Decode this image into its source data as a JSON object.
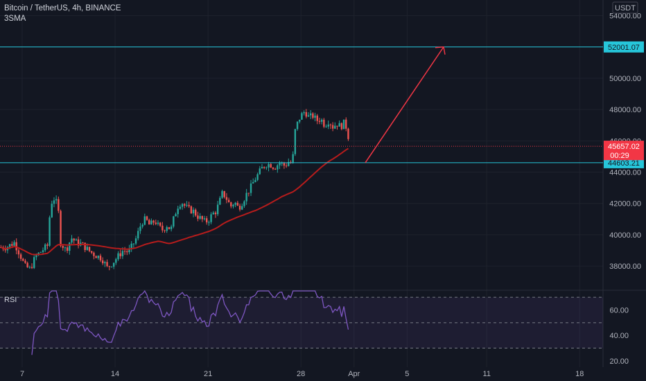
{
  "header": {
    "symbol_line": "Bitcoin / TetherUS, 4h, BINANCE",
    "indicator": "3SMA"
  },
  "currency": "USDT",
  "rsi_label": "RSI",
  "price_tag": {
    "price": "45657.02",
    "countdown": "00:29",
    "color": "#f23645"
  },
  "levels": [
    {
      "value": 52001.07,
      "label": "52001.07",
      "color": "#26c6da"
    },
    {
      "value": 44603.21,
      "label": "44603.21",
      "color": "#26c6da"
    }
  ],
  "colors": {
    "up": "#26a69a",
    "down": "#ef5350",
    "sma": "#b71c1c",
    "rsi": "#7e57c2",
    "arrow": "#f23645"
  },
  "chart_data": {
    "type": "candlestick",
    "title": "Bitcoin / TetherUS, 4h, BINANCE",
    "price_axis": {
      "ylim": [
        36500,
        55000
      ],
      "ticks": [
        38000,
        40000,
        42000,
        44000,
        46000,
        48000,
        50000,
        52000,
        54000
      ],
      "tick_labels": [
        "38000.00",
        "40000.00",
        "42000.00",
        "44000.00",
        "46000.00",
        "48000.00",
        "50000.00",
        "52000.00",
        "54000.00"
      ]
    },
    "x_axis": {
      "tick_labels": [
        "7",
        "14",
        "21",
        "28",
        "Apr",
        "5",
        "11",
        "18"
      ],
      "tick_day_index": [
        0,
        7,
        14,
        21,
        25,
        29,
        35,
        42
      ]
    },
    "price_path": [
      [
        -1.2,
        39200
      ],
      [
        -0.6,
        39500
      ],
      [
        -0.2,
        38800
      ],
      [
        0.2,
        38000
      ],
      [
        0.6,
        37800
      ],
      [
        1.0,
        38600
      ],
      [
        1.5,
        39000
      ],
      [
        1.9,
        39300
      ],
      [
        2.1,
        41500
      ],
      [
        2.3,
        42400
      ],
      [
        2.5,
        42200
      ],
      [
        2.7,
        41800
      ],
      [
        2.9,
        39500
      ],
      [
        3.3,
        39000
      ],
      [
        3.7,
        39800
      ],
      [
        4.1,
        39500
      ],
      [
        4.5,
        39400
      ],
      [
        5.0,
        39000
      ],
      [
        5.5,
        38700
      ],
      [
        6.0,
        38500
      ],
      [
        6.4,
        37900
      ],
      [
        6.8,
        38200
      ],
      [
        7.2,
        38600
      ],
      [
        7.6,
        39000
      ],
      [
        8.0,
        38900
      ],
      [
        8.3,
        39300
      ],
      [
        8.6,
        39800
      ],
      [
        8.8,
        40300
      ],
      [
        9.0,
        40800
      ],
      [
        9.3,
        41000
      ],
      [
        9.6,
        40600
      ],
      [
        10.0,
        40900
      ],
      [
        10.3,
        40500
      ],
      [
        10.6,
        40300
      ],
      [
        10.9,
        40600
      ],
      [
        11.2,
        40300
      ],
      [
        11.4,
        41000
      ],
      [
        11.7,
        41800
      ],
      [
        12.0,
        42100
      ],
      [
        12.3,
        41800
      ],
      [
        12.6,
        41600
      ],
      [
        12.9,
        41500
      ],
      [
        13.2,
        41200
      ],
      [
        13.5,
        41000
      ],
      [
        13.8,
        40800
      ],
      [
        14.1,
        41000
      ],
      [
        14.3,
        41300
      ],
      [
        14.6,
        41500
      ],
      [
        14.9,
        42200
      ],
      [
        15.1,
        42700
      ],
      [
        15.4,
        42300
      ],
      [
        15.7,
        41800
      ],
      [
        16.0,
        42100
      ],
      [
        16.3,
        41700
      ],
      [
        16.6,
        42100
      ],
      [
        16.9,
        42600
      ],
      [
        17.2,
        43000
      ],
      [
        17.5,
        43500
      ],
      [
        17.8,
        43900
      ],
      [
        18.1,
        44300
      ],
      [
        18.4,
        44500
      ],
      [
        18.7,
        44500
      ],
      [
        19.0,
        44300
      ],
      [
        19.4,
        44600
      ],
      [
        19.8,
        44400
      ],
      [
        20.1,
        44700
      ],
      [
        20.35,
        44500
      ],
      [
        20.55,
        46600
      ],
      [
        20.8,
        47300
      ],
      [
        21.0,
        47600
      ],
      [
        21.3,
        47900
      ],
      [
        21.6,
        47500
      ],
      [
        21.9,
        47600
      ],
      [
        22.2,
        47300
      ],
      [
        22.5,
        47400
      ],
      [
        22.8,
        47000
      ],
      [
        23.1,
        47300
      ],
      [
        23.4,
        46900
      ],
      [
        23.7,
        47100
      ],
      [
        24.0,
        46900
      ],
      [
        24.3,
        47200
      ],
      [
        24.5,
        46600
      ],
      [
        24.7,
        45660
      ]
    ],
    "rsi": {
      "label": "RSI",
      "ylim": [
        15,
        75
      ],
      "ticks": [
        20,
        40,
        60
      ],
      "tick_labels": [
        "20.00",
        "40.00",
        "60.00"
      ],
      "band": [
        30,
        70
      ],
      "midline": 50
    }
  }
}
